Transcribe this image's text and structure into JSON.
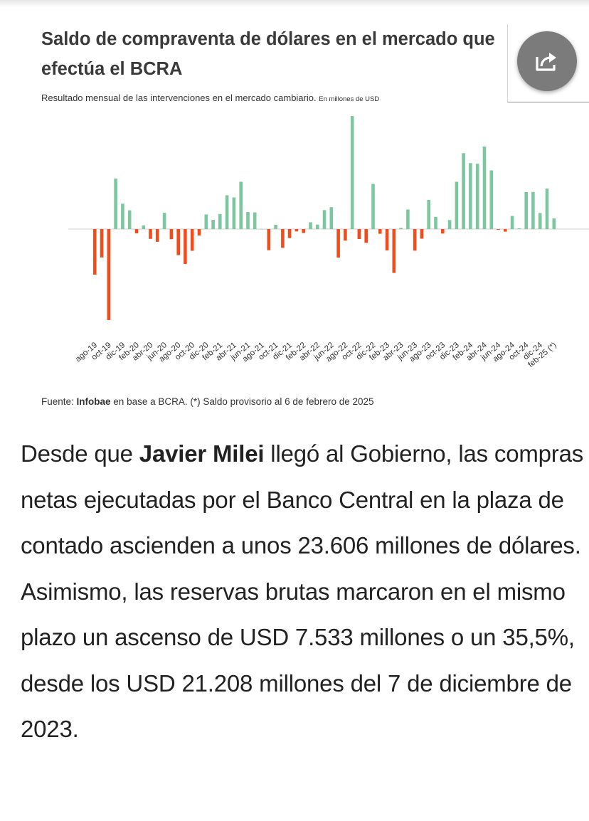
{
  "chart_data": {
    "type": "bar",
    "title": "Saldo de compraventa de dólares en el mercado que efectúa el BCRA",
    "subtitle": "Resultado  mensual de las intervenciones en el mercado cambiario.",
    "unit_note": "En millones de USD",
    "xlabel": "",
    "ylabel": "",
    "ylim": [
      -4800,
      6000
    ],
    "grid": false,
    "colors": {
      "positive": "#7cc79f",
      "negative": "#f24c1c"
    },
    "categories": [
      "ago-19",
      "sep-19",
      "oct-19",
      "nov-19",
      "dic-19",
      "ene-20",
      "feb-20",
      "mar-20",
      "abr-20",
      "may-20",
      "jun-20",
      "jul-20",
      "ago-20",
      "sep-20",
      "oct-20",
      "nov-20",
      "dic-20",
      "ene-21",
      "feb-21",
      "mar-21",
      "abr-21",
      "may-21",
      "jun-21",
      "jul-21",
      "ago-21",
      "sep-21",
      "oct-21",
      "nov-21",
      "dic-21",
      "ene-22",
      "feb-22",
      "mar-22",
      "abr-22",
      "may-22",
      "jun-22",
      "jul-22",
      "ago-22",
      "sep-22",
      "oct-22",
      "nov-22",
      "dic-22",
      "ene-23",
      "feb-23",
      "mar-23",
      "abr-23",
      "may-23",
      "jun-23",
      "jul-23",
      "ago-23",
      "sep-23",
      "oct-23",
      "nov-23",
      "dic-23",
      "ene-24",
      "feb-24",
      "mar-24",
      "abr-24",
      "may-24",
      "jun-24",
      "jul-24",
      "ago-24",
      "sep-24",
      "oct-24",
      "nov-24",
      "dic-24",
      "ene-25",
      "feb-25 (*)"
    ],
    "tick_labels": [
      "ago-19",
      "oct-19",
      "dic-19",
      "feb-20",
      "abr-20",
      "jun-20",
      "ago-20",
      "oct-20",
      "dic-20",
      "feb-21",
      "abr-21",
      "jun-21",
      "ago-21",
      "oct-21",
      "dic-21",
      "feb-22",
      "abr-22",
      "jun-22",
      "ago-22",
      "oct-22",
      "dic-22",
      "feb-23",
      "abr-23",
      "jun-23",
      "ago-23",
      "oct-23",
      "dic-23",
      "feb-24",
      "abr-24",
      "jun-24",
      "ago-24",
      "oct-24",
      "dic-24",
      "feb-25 (*)"
    ],
    "values": [
      -2330,
      -1450,
      -4650,
      2580,
      1300,
      960,
      -220,
      190,
      -500,
      -650,
      830,
      -520,
      -1330,
      -1780,
      -1110,
      -330,
      750,
      470,
      770,
      1730,
      1620,
      2420,
      870,
      850,
      0,
      -1080,
      220,
      -960,
      -460,
      -120,
      -200,
      350,
      230,
      970,
      1120,
      -1460,
      -590,
      5780,
      -510,
      -700,
      2310,
      -240,
      -1090,
      -2240,
      60,
      1000,
      -1100,
      -490,
      1490,
      620,
      -230,
      460,
      2420,
      3880,
      3370,
      3340,
      4220,
      3000,
      -40,
      -130,
      670,
      40,
      1890,
      1900,
      820,
      2070,
      550
    ]
  },
  "share": {
    "icon": "share-icon"
  },
  "source": {
    "prefix": "Fuente: ",
    "brand": "Infobae",
    "suffix": " en base a BCRA. (*) Saldo provisorio al 6 de febrero de 2025"
  },
  "article": {
    "part1": "Desde que ",
    "name": "Javier Milei",
    "part2": " llegó al Gobierno, las compras netas ejecutadas por el Banco Central en la plaza de contado ascienden a unos 23.606 millones de dólares. Asimismo, las reservas brutas marcaron en el mismo plazo un ascenso de USD 7.533 millones o un 35,5%, desde los USD 21.208 millones del 7 de diciembre de 2023."
  }
}
